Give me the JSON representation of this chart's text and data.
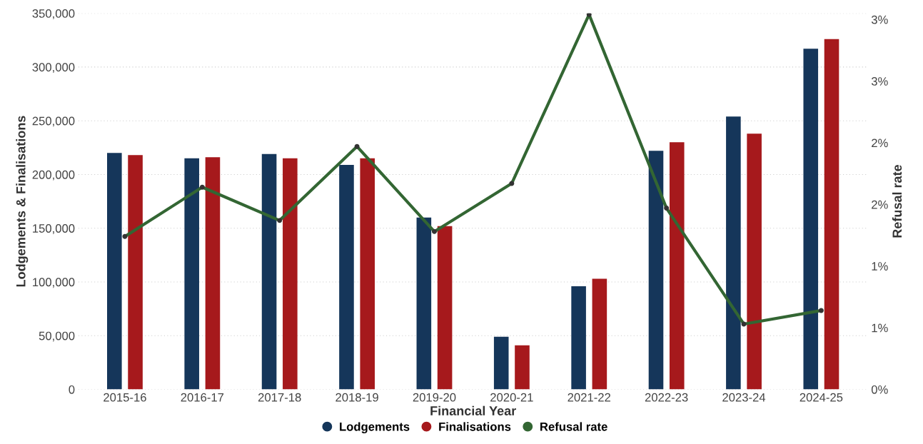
{
  "chart_data": {
    "type": "bar",
    "xlabel": "Financial Year",
    "ylabel": "Lodgements & Finalisations",
    "y2label": "Refusal rate",
    "categories": [
      "2015-16",
      "2016-17",
      "2017-18",
      "2018-19",
      "2019-20",
      "2020-21",
      "2021-22",
      "2022-23",
      "2023-24",
      "2024-25"
    ],
    "series": [
      {
        "name": "Lodgements",
        "color": "#15365a",
        "values": [
          220000,
          215000,
          219000,
          209000,
          160000,
          49000,
          96000,
          222000,
          254000,
          317000
        ]
      },
      {
        "name": "Finalisations",
        "color": "#a6191c",
        "values": [
          218000,
          216000,
          215000,
          215000,
          152000,
          41000,
          103000,
          230000,
          238000,
          326000
        ]
      },
      {
        "name": "Refusal rate",
        "type": "line",
        "axis": "y2",
        "color": "#336633",
        "marker": "circle",
        "values": [
          1.24,
          1.64,
          1.37,
          1.97,
          1.28,
          1.67,
          3.04,
          1.47,
          0.53,
          0.64
        ]
      }
    ],
    "ylim": [
      0,
      350000
    ],
    "yticks": [
      {
        "value": 0,
        "label": "0"
      },
      {
        "value": 50000,
        "label": "50,000"
      },
      {
        "value": 100000,
        "label": "100,000"
      },
      {
        "value": 150000,
        "label": "150,000"
      },
      {
        "value": 200000,
        "label": "200,000"
      },
      {
        "value": 250000,
        "label": "250,000"
      },
      {
        "value": 300000,
        "label": "300,000"
      },
      {
        "value": 350000,
        "label": "350,000"
      }
    ],
    "y2lim": [
      0,
      3.05
    ],
    "y2ticks": [
      {
        "value": 0,
        "label": "0%"
      },
      {
        "value": 0.5,
        "label": "1%"
      },
      {
        "value": 1,
        "label": "1%"
      },
      {
        "value": 1.5,
        "label": "2%"
      },
      {
        "value": 2,
        "label": "2%"
      },
      {
        "value": 2.5,
        "label": "3%"
      },
      {
        "value": 3,
        "label": "3%"
      }
    ],
    "grid": "y",
    "legend": "bottom"
  }
}
